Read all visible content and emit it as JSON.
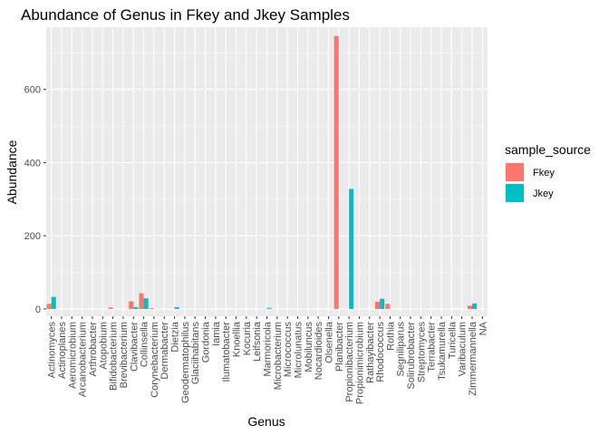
{
  "chart_data": {
    "type": "bar",
    "title": "Abundance of Genus in Fkey and Jkey Samples",
    "xlabel": "Genus",
    "ylabel": "Abundance",
    "ylim": [
      -20,
      770
    ],
    "yticks": [
      0,
      200,
      400,
      600
    ],
    "grid": true,
    "legend_position": "right",
    "legend_title": "sample_source",
    "categories": [
      "Actinomyces",
      "Actinoplanes",
      "Aeromicrobium",
      "Arcanobacterium",
      "Arthrobacter",
      "Atopobium",
      "Bifidobacterium",
      "Brevibacterium",
      "Clavibacter",
      "Collinsella",
      "Corynebacterium",
      "Dermabacter",
      "Dietzia",
      "Geodermatophilus",
      "Glaciihabitans",
      "Gordonia",
      "Iamia",
      "Ilumatobacter",
      "Knoellia",
      "Kocuria",
      "Leifsonia",
      "Marmoricola",
      "Microbacterium",
      "Micrococcus",
      "Microlunatus",
      "Mobiluncus",
      "Nocardioides",
      "Olsenella",
      "Planibacter",
      "Propionibacterium",
      "Propionimicrobium",
      "Rathayibacter",
      "Rhodococcus",
      "Rothia",
      "Segniliparus",
      "Solirubrobacter",
      "Streptomyces",
      "Terrabacter",
      "Tsukamurella",
      "Turicella",
      "Varibaculum",
      "Zimmermannella",
      "NA"
    ],
    "series": [
      {
        "name": "Fkey",
        "color": "#F8766D",
        "values": [
          14,
          0,
          0,
          0,
          0,
          0,
          4,
          0,
          21,
          43,
          2,
          0,
          0,
          0,
          0,
          0,
          0,
          0,
          0,
          0,
          0,
          0,
          0,
          0,
          0,
          0,
          0,
          0,
          746,
          0,
          0,
          0,
          20,
          14,
          0,
          0,
          0,
          0,
          0,
          0,
          0,
          9,
          0
        ]
      },
      {
        "name": "Jkey",
        "color": "#00BFC4",
        "values": [
          33,
          0,
          0,
          0,
          0,
          0,
          0,
          0,
          5,
          29,
          0,
          0,
          5,
          0,
          0,
          0,
          0,
          0,
          0,
          0,
          0,
          3,
          0,
          0,
          0,
          0,
          0,
          0,
          0,
          328,
          0,
          0,
          28,
          0,
          0,
          0,
          0,
          0,
          0,
          0,
          0,
          15,
          0
        ]
      }
    ]
  }
}
